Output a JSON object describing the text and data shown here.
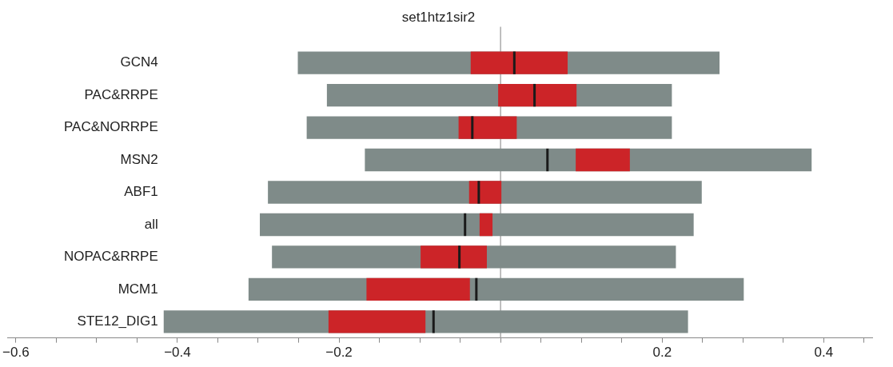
{
  "chart_data": {
    "type": "bar",
    "orientation": "horizontal",
    "title": "set1htz1sir2",
    "categories": [
      "GCN4",
      "PAC&RRPE",
      "PAC&NORRPE",
      "MSN2",
      "ABF1",
      "all",
      "NOPAC&RRPE",
      "MCM1",
      "STE12_DIG1"
    ],
    "series": [
      {
        "color": "#7f8b89",
        "base": [
          -0.251,
          -0.215,
          -0.24,
          -0.168,
          -0.288,
          -0.298,
          -0.283,
          -0.312,
          -0.417
        ],
        "values": [
          0.522,
          0.427,
          0.452,
          0.553,
          0.537,
          0.537,
          0.5,
          0.613,
          0.649
        ]
      },
      {
        "color": "#cc2428",
        "base": [
          -0.037,
          -0.003,
          -0.052,
          0.093,
          -0.039,
          -0.026,
          -0.099,
          -0.166,
          -0.213
        ],
        "values": [
          0.12,
          0.097,
          0.072,
          0.067,
          0.04,
          0.016,
          0.082,
          0.128,
          0.12
        ]
      },
      {
        "color": "#1a1a1a",
        "base": [
          0.017,
          0.042,
          -0.035,
          0.058,
          -0.027,
          -0.044,
          -0.051,
          -0.03,
          -0.083
        ],
        "values": [
          0,
          0,
          0,
          0,
          0,
          0,
          0,
          0,
          0
        ]
      }
    ],
    "xlim": [
      -0.61,
      0.46
    ],
    "xticks": [
      -0.6,
      {
        "value": -0.55,
        "label": null
      },
      {
        "value": -0.5,
        "label": null
      },
      {
        "value": -0.45,
        "label": null
      },
      -0.4,
      {
        "value": -0.35,
        "label": null
      },
      {
        "value": -0.3,
        "label": null
      },
      {
        "value": -0.25,
        "label": null
      },
      -0.2,
      {
        "value": -0.15,
        "label": null
      },
      {
        "value": -0.1,
        "label": null
      },
      {
        "value": -0.05,
        "label": null
      },
      {
        "value": 0,
        "label": null
      },
      {
        "value": 0.05,
        "label": null
      },
      {
        "value": 0.1,
        "label": null
      },
      {
        "value": 0.15,
        "label": null
      },
      0.2,
      {
        "value": 0.25,
        "label": null
      },
      {
        "value": 0.3,
        "label": null
      },
      {
        "value": 0.35,
        "label": null
      },
      0.4,
      {
        "value": 0.45,
        "label": null
      }
    ],
    "ref_lines": [
      {
        "axis": "x",
        "value": 0,
        "color": "#aaaaaa"
      }
    ],
    "grid": false,
    "legend": false
  }
}
